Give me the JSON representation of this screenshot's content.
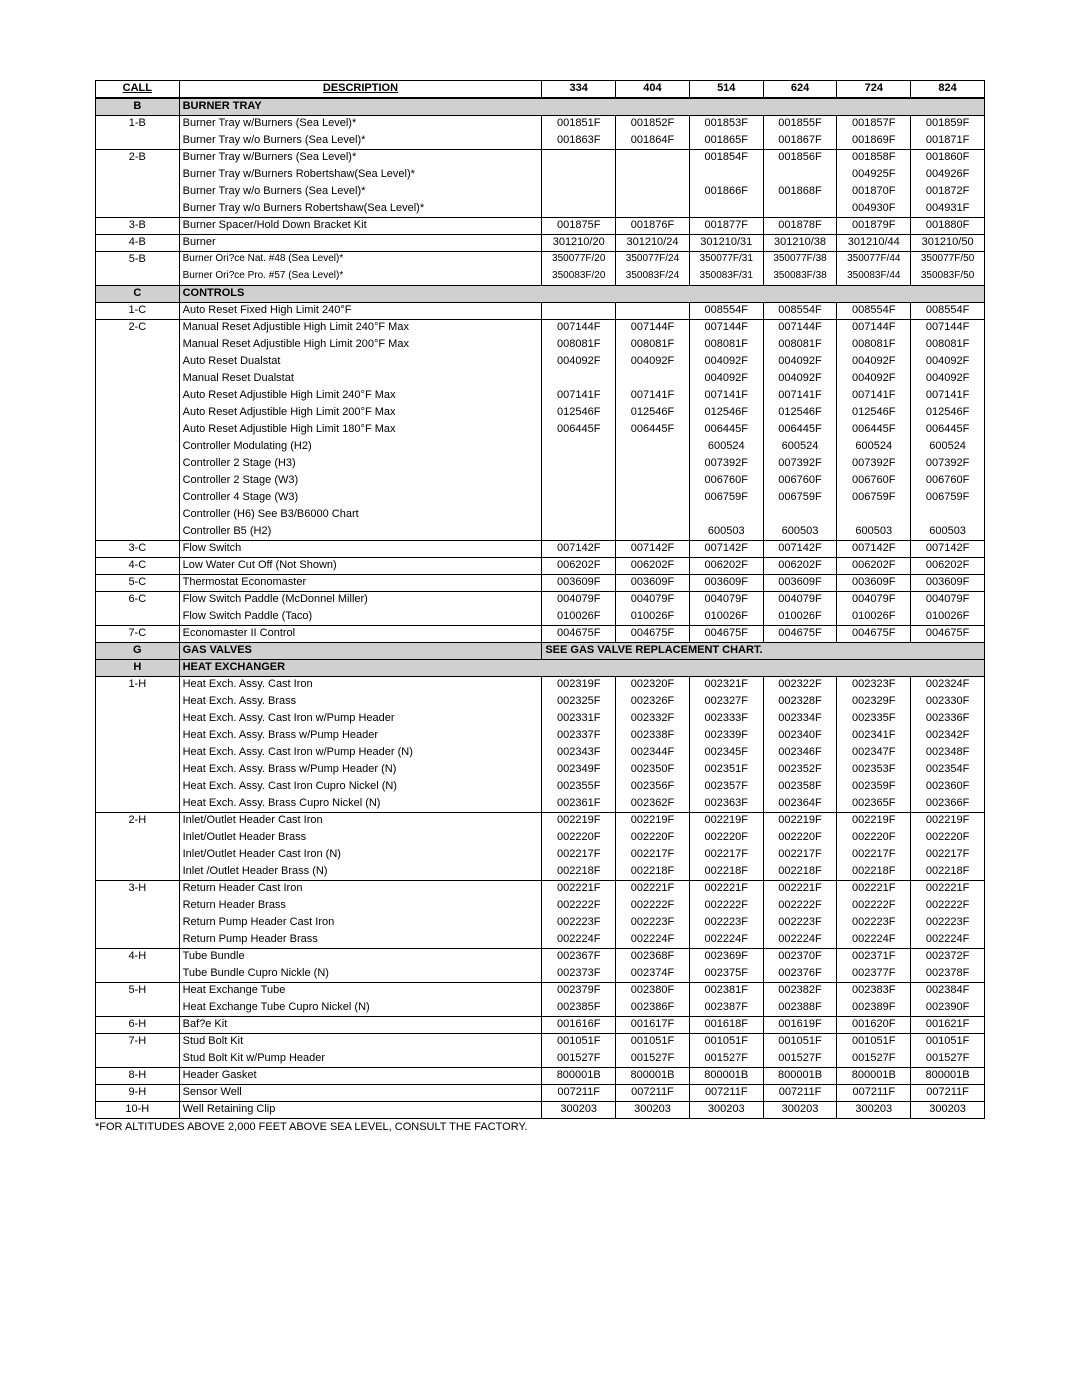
{
  "headers": {
    "call": "CALL",
    "desc": "DESCRIPTION",
    "cols": [
      "334",
      "404",
      "514",
      "624",
      "724",
      "824"
    ]
  },
  "footnote": "*FOR ALTITUDES ABOVE 2,000 FEET ABOVE SEA LEVEL, CONSULT THE FACTORY.",
  "gas_valve_note": "SEE GAS VALVE REPLACEMENT CHART.",
  "sections": [
    {
      "group": "B",
      "title": "BURNER TRAY",
      "rows": [
        {
          "call": "1-B",
          "desc": "Burner Tray w/Burners (Sea Level)*",
          "v": [
            "001851F",
            "001852F",
            "001853F",
            "001855F",
            "001857F",
            "001859F"
          ]
        },
        {
          "call": "",
          "desc": "Burner Tray w/o Burners (Sea Level)*",
          "v": [
            "001863F",
            "001864F",
            "001865F",
            "001867F",
            "001869F",
            "001871F"
          ]
        },
        {
          "call": "2-B",
          "desc": "Burner Tray w/Burners (Sea Level)*",
          "v": [
            "",
            "",
            "001854F",
            "001856F",
            "001858F",
            "001860F"
          ]
        },
        {
          "call": "",
          "desc": "Burner Tray w/Burners Robertshaw(Sea Level)*",
          "v": [
            "",
            "",
            "",
            "",
            "004925F",
            "004926F"
          ]
        },
        {
          "call": "",
          "desc": "Burner Tray w/o Burners (Sea Level)*",
          "v": [
            "",
            "",
            "001866F",
            "001868F",
            "001870F",
            "001872F"
          ]
        },
        {
          "call": "",
          "desc": "Burner Tray w/o Burners Robertshaw(Sea Level)*",
          "v": [
            "",
            "",
            "",
            "",
            "004930F",
            "004931F"
          ]
        },
        {
          "call": "3-B",
          "desc": "Burner Spacer/Hold Down Bracket Kit",
          "v": [
            "001875F",
            "001876F",
            "001877F",
            "001878F",
            "001879F",
            "001880F"
          ]
        },
        {
          "call": "4-B",
          "desc": "Burner",
          "v": [
            "301210/20",
            "301210/24",
            "301210/31",
            "301210/38",
            "301210/44",
            "301210/50"
          ]
        },
        {
          "call": "5-B",
          "desc": "Burner Ori?ce Nat. #48 (Sea Level)*",
          "v": [
            "350077F/20",
            "350077F/24",
            "350077F/31",
            "350077F/38",
            "350077F/44",
            "350077F/50"
          ],
          "small": true
        },
        {
          "call": "",
          "desc": "Burner Ori?ce Pro. #57 (Sea Level)*",
          "v": [
            "350083F/20",
            "350083F/24",
            "350083F/31",
            "350083F/38",
            "350083F/44",
            "350083F/50"
          ],
          "small": true
        }
      ]
    },
    {
      "group": "C",
      "title": "CONTROLS",
      "rows": [
        {
          "call": "1-C",
          "desc": "Auto Reset Fixed High Limit 240°F",
          "v": [
            "",
            "",
            "008554F",
            "008554F",
            "008554F",
            "008554F"
          ]
        },
        {
          "call": "2-C",
          "desc": "Manual Reset Adjustible High Limit 240°F Max",
          "v": [
            "007144F",
            "007144F",
            "007144F",
            "007144F",
            "007144F",
            "007144F"
          ]
        },
        {
          "call": "",
          "desc": "Manual Reset Adjustible High Limit 200°F Max",
          "v": [
            "008081F",
            "008081F",
            "008081F",
            "008081F",
            "008081F",
            "008081F"
          ]
        },
        {
          "call": "",
          "desc": "Auto Reset Dualstat",
          "v": [
            "004092F",
            "004092F",
            "004092F",
            "004092F",
            "004092F",
            "004092F"
          ]
        },
        {
          "call": "",
          "desc": "Manual Reset Dualstat",
          "v": [
            "",
            "",
            "004092F",
            "004092F",
            "004092F",
            "004092F"
          ]
        },
        {
          "call": "",
          "desc": "Auto Reset Adjustible High Limit 240°F Max",
          "v": [
            "007141F",
            "007141F",
            "007141F",
            "007141F",
            "007141F",
            "007141F"
          ]
        },
        {
          "call": "",
          "desc": "Auto Reset Adjustible High Limit 200°F Max",
          "v": [
            "012546F",
            "012546F",
            "012546F",
            "012546F",
            "012546F",
            "012546F"
          ]
        },
        {
          "call": "",
          "desc": "Auto Reset Adjustible High Limit 180°F Max",
          "v": [
            "006445F",
            "006445F",
            "006445F",
            "006445F",
            "006445F",
            "006445F"
          ]
        },
        {
          "call": "",
          "desc": "Controller Modulating (H2)",
          "v": [
            "",
            "",
            "600524",
            "600524",
            "600524",
            "600524"
          ]
        },
        {
          "call": "",
          "desc": "Controller 2 Stage (H3)",
          "v": [
            "",
            "",
            "007392F",
            "007392F",
            "007392F",
            "007392F"
          ]
        },
        {
          "call": "",
          "desc": "Controller 2 Stage (W3)",
          "v": [
            "",
            "",
            "006760F",
            "006760F",
            "006760F",
            "006760F"
          ]
        },
        {
          "call": "",
          "desc": "Controller 4 Stage (W3)",
          "v": [
            "",
            "",
            "006759F",
            "006759F",
            "006759F",
            "006759F"
          ]
        },
        {
          "call": "",
          "desc": "Controller (H6) See B3/B6000 Chart",
          "v": [
            "",
            "",
            "",
            "",
            "",
            ""
          ]
        },
        {
          "call": "",
          "desc": "Controller B5 (H2)",
          "v": [
            "",
            "",
            "600503",
            "600503",
            "600503",
            "600503"
          ]
        },
        {
          "call": "3-C",
          "desc": "Flow Switch",
          "v": [
            "007142F",
            "007142F",
            "007142F",
            "007142F",
            "007142F",
            "007142F"
          ]
        },
        {
          "call": "4-C",
          "desc": "Low Water Cut Off (Not Shown)",
          "v": [
            "006202F",
            "006202F",
            "006202F",
            "006202F",
            "006202F",
            "006202F"
          ]
        },
        {
          "call": "5-C",
          "desc": "Thermostat Economaster",
          "v": [
            "003609F",
            "003609F",
            "003609F",
            "003609F",
            "003609F",
            "003609F"
          ]
        },
        {
          "call": "6-C",
          "desc": "Flow Switch Paddle (McDonnel Miller)",
          "v": [
            "004079F",
            "004079F",
            "004079F",
            "004079F",
            "004079F",
            "004079F"
          ]
        },
        {
          "call": "",
          "desc": "Flow Switch Paddle (Taco)",
          "v": [
            "010026F",
            "010026F",
            "010026F",
            "010026F",
            "010026F",
            "010026F"
          ]
        },
        {
          "call": "7-C",
          "desc": "Economaster II Control",
          "v": [
            "004675F",
            "004675F",
            "004675F",
            "004675F",
            "004675F",
            "004675F"
          ]
        }
      ]
    },
    {
      "group": "G",
      "title": "GAS VALVES",
      "gas": true
    },
    {
      "group": "H",
      "title": "HEAT EXCHANGER",
      "rows": [
        {
          "call": "1-H",
          "desc": "Heat Exch. Assy. Cast Iron",
          "v": [
            "002319F",
            "002320F",
            "002321F",
            "002322F",
            "002323F",
            "002324F"
          ]
        },
        {
          "call": "",
          "desc": "Heat Exch. Assy. Brass",
          "v": [
            "002325F",
            "002326F",
            "002327F",
            "002328F",
            "002329F",
            "002330F"
          ]
        },
        {
          "call": "",
          "desc": "Heat Exch. Assy. Cast Iron w/Pump Header",
          "v": [
            "002331F",
            "002332F",
            "002333F",
            "002334F",
            "002335F",
            "002336F"
          ]
        },
        {
          "call": "",
          "desc": "Heat Exch. Assy. Brass w/Pump Header",
          "v": [
            "002337F",
            "002338F",
            "002339F",
            "002340F",
            "002341F",
            "002342F"
          ]
        },
        {
          "call": "",
          "desc": "Heat Exch. Assy. Cast Iron w/Pump Header (N)",
          "v": [
            "002343F",
            "002344F",
            "002345F",
            "002346F",
            "002347F",
            "002348F"
          ]
        },
        {
          "call": "",
          "desc": "Heat Exch. Assy. Brass w/Pump Header (N)",
          "v": [
            "002349F",
            "002350F",
            "002351F",
            "002352F",
            "002353F",
            "002354F"
          ]
        },
        {
          "call": "",
          "desc": "Heat Exch. Assy. Cast Iron Cupro Nickel (N)",
          "v": [
            "002355F",
            "002356F",
            "002357F",
            "002358F",
            "002359F",
            "002360F"
          ]
        },
        {
          "call": "",
          "desc": "Heat Exch. Assy. Brass Cupro Nickel (N)",
          "v": [
            "002361F",
            "002362F",
            "002363F",
            "002364F",
            "002365F",
            "002366F"
          ]
        },
        {
          "call": "2-H",
          "desc": "Inlet/Outlet Header Cast Iron",
          "v": [
            "002219F",
            "002219F",
            "002219F",
            "002219F",
            "002219F",
            "002219F"
          ]
        },
        {
          "call": "",
          "desc": "Inlet/Outlet Header Brass",
          "v": [
            "002220F",
            "002220F",
            "002220F",
            "002220F",
            "002220F",
            "002220F"
          ]
        },
        {
          "call": "",
          "desc": "Inlet/Outlet Header Cast Iron (N)",
          "v": [
            "002217F",
            "002217F",
            "002217F",
            "002217F",
            "002217F",
            "002217F"
          ]
        },
        {
          "call": "",
          "desc": "Inlet /Outlet Header Brass (N)",
          "v": [
            "002218F",
            "002218F",
            "002218F",
            "002218F",
            "002218F",
            "002218F"
          ]
        },
        {
          "call": "3-H",
          "desc": "Return Header Cast Iron",
          "v": [
            "002221F",
            "002221F",
            "002221F",
            "002221F",
            "002221F",
            "002221F"
          ]
        },
        {
          "call": "",
          "desc": "Return Header Brass",
          "v": [
            "002222F",
            "002222F",
            "002222F",
            "002222F",
            "002222F",
            "002222F"
          ]
        },
        {
          "call": "",
          "desc": "Return Pump Header Cast Iron",
          "v": [
            "002223F",
            "002223F",
            "002223F",
            "002223F",
            "002223F",
            "002223F"
          ]
        },
        {
          "call": "",
          "desc": "Return Pump Header Brass",
          "v": [
            "002224F",
            "002224F",
            "002224F",
            "002224F",
            "002224F",
            "002224F"
          ]
        },
        {
          "call": "4-H",
          "desc": "Tube Bundle",
          "v": [
            "002367F",
            "002368F",
            "002369F",
            "002370F",
            "002371F",
            "002372F"
          ]
        },
        {
          "call": "",
          "desc": "Tube Bundle Cupro Nickle (N)",
          "v": [
            "002373F",
            "002374F",
            "002375F",
            "002376F",
            "002377F",
            "002378F"
          ]
        },
        {
          "call": "5-H",
          "desc": "Heat Exchange Tube",
          "v": [
            "002379F",
            "002380F",
            "002381F",
            "002382F",
            "002383F",
            "002384F"
          ]
        },
        {
          "call": "",
          "desc": "Heat Exchange Tube Cupro Nickel (N)",
          "v": [
            "002385F",
            "002386F",
            "002387F",
            "002388F",
            "002389F",
            "002390F"
          ]
        },
        {
          "call": "6-H",
          "desc": "Baf?e Kit",
          "v": [
            "001616F",
            "001617F",
            "001618F",
            "001619F",
            "001620F",
            "001621F"
          ]
        },
        {
          "call": "7-H",
          "desc": "Stud Bolt Kit",
          "v": [
            "001051F",
            "001051F",
            "001051F",
            "001051F",
            "001051F",
            "001051F"
          ]
        },
        {
          "call": "",
          "desc": "Stud Bolt Kit w/Pump Header",
          "v": [
            "001527F",
            "001527F",
            "001527F",
            "001527F",
            "001527F",
            "001527F"
          ]
        },
        {
          "call": "8-H",
          "desc": "Header Gasket",
          "v": [
            "800001B",
            "800001B",
            "800001B",
            "800001B",
            "800001B",
            "800001B"
          ]
        },
        {
          "call": "9-H",
          "desc": "Sensor Well",
          "v": [
            "007211F",
            "007211F",
            "007211F",
            "007211F",
            "007211F",
            "007211F"
          ]
        },
        {
          "call": "10-H",
          "desc": "Well Retaining Clip",
          "v": [
            "300203",
            "300203",
            "300203",
            "300203",
            "300203",
            "300203"
          ]
        }
      ]
    }
  ]
}
